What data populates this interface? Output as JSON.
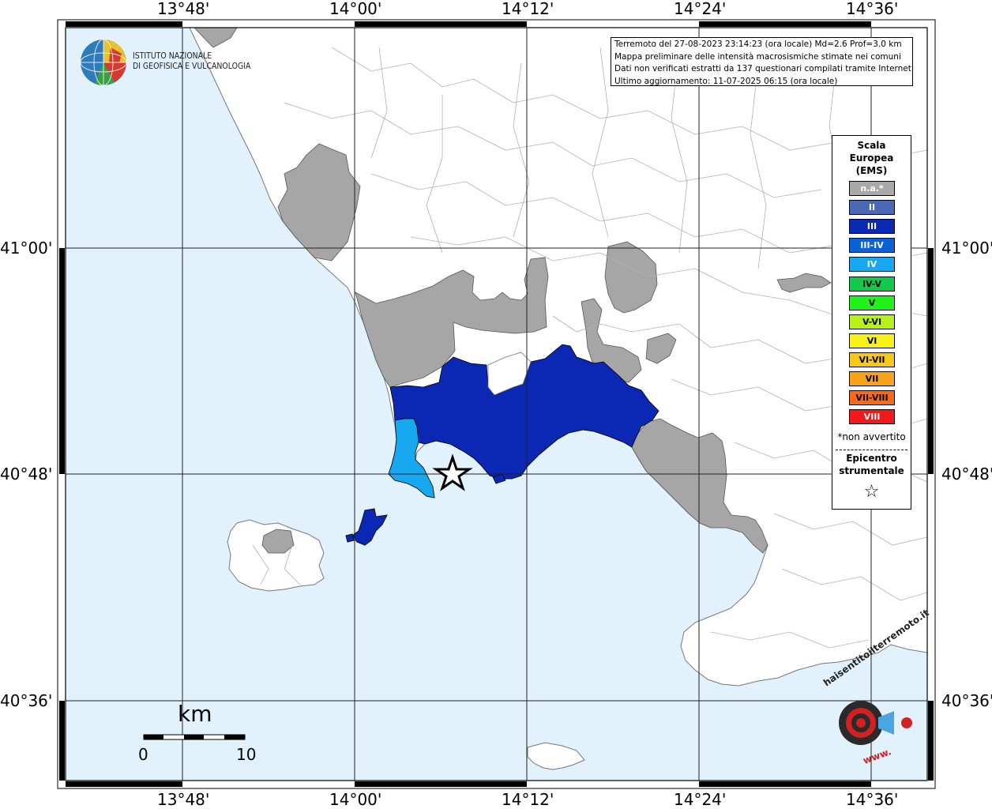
{
  "axes": {
    "lon_labels": [
      "13°48'",
      "14°00'",
      "14°12'",
      "14°24'",
      "14°36'"
    ],
    "lat_labels": [
      "41°00'",
      "40°48'",
      "40°36'"
    ]
  },
  "info": {
    "line1": "Terremoto del 27-08-2023 23:14:23 (ora locale) Md=2.6 Prof=3.0 km",
    "line2": "Mappa preliminare delle intensità macrosismiche stimate nei comuni",
    "line3": "Dati non verificati estratti da 137 questionari compilati tramite Internet.",
    "line4": "Ultimo aggiornamento: 11-07-2025 06:15 (ora locale)"
  },
  "logo": {
    "line1": "ISTITUTO NAZIONALE",
    "line2": "DI GEOFISICA E VULCANOLOGIA",
    "icon": "ingv-globe-logo"
  },
  "legend": {
    "title_lines": [
      "Scala",
      "Europea",
      "(EMS)"
    ],
    "items": [
      {
        "label": "n.a.*",
        "color": "#a9a9a9",
        "text_color": "#ffffff"
      },
      {
        "label": "II",
        "color": "#4b68b5",
        "text_color": "#ffffff"
      },
      {
        "label": "III",
        "color": "#0a28b3",
        "text_color": "#ffffff"
      },
      {
        "label": "III-IV",
        "color": "#0a63d6",
        "text_color": "#ffffff"
      },
      {
        "label": "IV",
        "color": "#18a8ef",
        "text_color": "#ffffff"
      },
      {
        "label": "IV-V",
        "color": "#11c94a",
        "text_color": "#000000"
      },
      {
        "label": "V",
        "color": "#22f21c",
        "text_color": "#000000"
      },
      {
        "label": "V-VI",
        "color": "#b6f21a",
        "text_color": "#000000"
      },
      {
        "label": "VI",
        "color": "#f6f21a",
        "text_color": "#000000"
      },
      {
        "label": "VI-VII",
        "color": "#f6c81a",
        "text_color": "#000000"
      },
      {
        "label": "VII",
        "color": "#f6a21a",
        "text_color": "#000000"
      },
      {
        "label": "VII-VIII",
        "color": "#f66a1a",
        "text_color": "#000000"
      },
      {
        "label": "VIII",
        "color": "#f11a1a",
        "text_color": "#ffffff"
      }
    ],
    "note": "*non avvertito",
    "epicenter_lines": [
      "Epicentro",
      "strumentale"
    ],
    "epicenter_symbol": "☆"
  },
  "scale_bar": {
    "unit": "km",
    "start": "0",
    "end": "10"
  },
  "colors": {
    "sea": "#e1f2fd",
    "land": "#ffffff",
    "not_felt": "#a6a6a6",
    "intensity_III": "#0a28b3",
    "intensity_IV": "#18a8ef",
    "border": "#b0b0b0"
  },
  "watermark": {
    "text_top": "haisentitoilterremoto.it",
    "text_bottom": "www.",
    "icon": "hsit-target-logo"
  }
}
